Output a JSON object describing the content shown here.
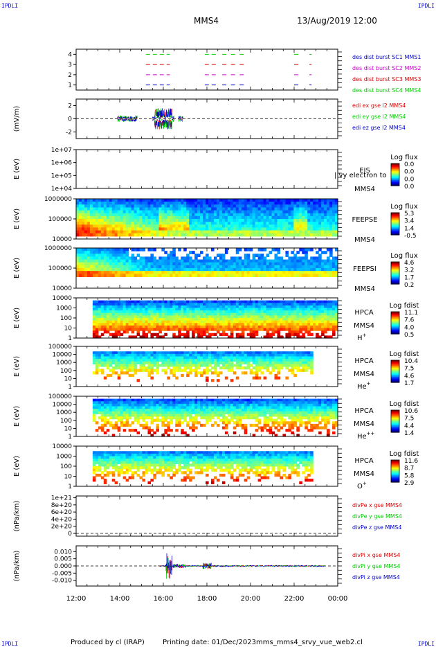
{
  "header": {
    "corner_label": "IPDLI",
    "spacecraft": "MMS4",
    "datetime": "13/Aug/2019 12:00"
  },
  "footer": {
    "produced_by": "Produced by cl (IRAP)",
    "printing_date": "Printing date: 01/Dec/2023",
    "filename": "mms_mms4_srvy_vue_web2.cl"
  },
  "time_axis": {
    "ticks": [
      "12:00",
      "14:00",
      "16:00",
      "18:00",
      "20:00",
      "22:00",
      "00:00"
    ],
    "start_hour": 12,
    "end_hour": 24
  },
  "colors": {
    "red": "#dd0000",
    "green": "#00cc00",
    "blue": "#0000cc",
    "magenta": "#cc00cc"
  },
  "chart_data": [
    {
      "type": "line",
      "id": "burst",
      "ylim": [
        0.5,
        4.5
      ],
      "yticks": [
        "1",
        "2",
        "3",
        "4"
      ],
      "legend": [
        {
          "label": "des dist burst SC1 MMS1",
          "color": "#0000cc"
        },
        {
          "label": "des dist burst SC2 MMS2",
          "color": "#cc00cc"
        },
        {
          "label": "des dist burst SC3 MMS3",
          "color": "#dd0000"
        },
        {
          "label": "des dist burst SC4 MMS4",
          "color": "#00cc00"
        }
      ],
      "intervals_hours": [
        [
          15.2,
          16.3
        ],
        [
          17.9,
          18.5
        ],
        [
          18.7,
          18.9
        ],
        [
          19.1,
          19.3
        ],
        [
          19.5,
          19.7
        ],
        [
          22.0,
          22.2
        ],
        [
          22.7,
          22.8
        ]
      ]
    },
    {
      "type": "line",
      "id": "edi",
      "ylabel": "(mV/m)",
      "ylim": [
        -3,
        3
      ],
      "yticks": [
        "2",
        "0",
        "-2"
      ],
      "legend": [
        {
          "label": "edi ex gse l2 MMS4",
          "color": "#dd0000"
        },
        {
          "label": "edi ey gse l2 MMS4",
          "color": "#00cc00"
        },
        {
          "label": "edi ez gse l2 MMS4",
          "color": "#0000cc"
        }
      ],
      "activity_hours": [
        13.9,
        16.9
      ]
    },
    {
      "type": "heatmap",
      "id": "eis",
      "ylabel": "E (eV)",
      "yticks": [
        "1e+07",
        "1e+06",
        "1e+05",
        "1e+04"
      ],
      "ylim_log": [
        4,
        7
      ],
      "instrument": "EIS",
      "spacecraft": "MMS4",
      "overlay_text": "| vy electron to",
      "colorbar_title": "Log flux",
      "colorbar_ticks": [
        "0.0",
        "0.0",
        "0.0",
        "0.0"
      ],
      "empty": true
    },
    {
      "type": "heatmap",
      "id": "feepse",
      "ylabel": "E (eV)",
      "yticks": [
        "1000000",
        "100000",
        "10000"
      ],
      "ylim_log": [
        4,
        6
      ],
      "instrument": "FEEPSE",
      "spacecraft": "MMS4",
      "colorbar_title": "Log flux",
      "colorbar_ticks": [
        "5.3",
        "3.4",
        "1.4",
        "-0.5"
      ]
    },
    {
      "type": "heatmap",
      "id": "feepsi",
      "ylabel": "E (eV)",
      "yticks": [
        "1000000",
        "100000",
        "10000"
      ],
      "ylim_log": [
        4,
        6
      ],
      "instrument": "FEEPSI",
      "spacecraft": "MMS4",
      "colorbar_title": "Log flux",
      "colorbar_ticks": [
        "4.6",
        "3.2",
        "1.7",
        "0.2"
      ]
    },
    {
      "type": "heatmap",
      "id": "hpca_h",
      "ylabel": "E (eV)",
      "yticks": [
        "10000",
        "1000",
        "100",
        "10",
        "1"
      ],
      "ylim_log": [
        0,
        4.3
      ],
      "instrument": "HPCA",
      "spacecraft": "MMS4",
      "species": "H",
      "charge": "+",
      "colorbar_title": "Log fdist",
      "colorbar_ticks": [
        "11.1",
        "7.6",
        "4.0",
        "0.5"
      ],
      "data_hours": [
        12.8,
        24.0
      ]
    },
    {
      "type": "heatmap",
      "id": "hpca_he1",
      "ylabel": "E (eV)",
      "yticks": [
        "100000",
        "10000",
        "1000",
        "100",
        "10",
        "1"
      ],
      "ylim_log": [
        0,
        5
      ],
      "instrument": "HPCA",
      "spacecraft": "MMS4",
      "species": "He",
      "charge": "+",
      "colorbar_title": "Log fdist",
      "colorbar_ticks": [
        "10.4",
        "7.5",
        "4.6",
        "1.7"
      ],
      "data_hours": [
        12.8,
        22.8
      ]
    },
    {
      "type": "heatmap",
      "id": "hpca_he2",
      "ylabel": "E (eV)",
      "yticks": [
        "100000",
        "10000",
        "1000",
        "100",
        "10",
        "1"
      ],
      "ylim_log": [
        0,
        5
      ],
      "instrument": "HPCA",
      "spacecraft": "MMS4",
      "species": "He",
      "charge": "++",
      "colorbar_title": "Log fdist",
      "colorbar_ticks": [
        "10.6",
        "7.5",
        "4.4",
        "1.4"
      ],
      "data_hours": [
        12.8,
        24.0
      ]
    },
    {
      "type": "heatmap",
      "id": "hpca_o",
      "ylabel": "E (eV)",
      "yticks": [
        "10000",
        "1000",
        "100",
        "10",
        "1"
      ],
      "ylim_log": [
        0,
        4.3
      ],
      "instrument": "HPCA",
      "spacecraft": "MMS4",
      "species": "O",
      "charge": "+",
      "colorbar_title": "Log fdist",
      "colorbar_ticks": [
        "11.6",
        "8.7",
        "5.8",
        "2.9"
      ],
      "data_hours": [
        12.8,
        22.8
      ]
    },
    {
      "type": "line",
      "id": "divpe",
      "ylabel": "(nPa/km)",
      "yticks": [
        "1e+21",
        "8e+20",
        "6e+20",
        "4e+20",
        "2e+20",
        "0"
      ],
      "ylim": [
        0,
        1.05
      ],
      "legend": [
        {
          "label": "divPe x gse MMS4",
          "color": "#dd0000"
        },
        {
          "label": "divPe y gse MMS4",
          "color": "#00cc00"
        },
        {
          "label": "divPe z gse MMS4",
          "color": "#0000cc"
        }
      ]
    },
    {
      "type": "line",
      "id": "divpi",
      "ylabel": "(nPa/km)",
      "yticks": [
        "0.010",
        "0.005",
        "0.000",
        "-0.005",
        "-0.010"
      ],
      "ylim": [
        -0.014,
        0.014
      ],
      "legend": [
        {
          "label": "divPi x gse MMS4",
          "color": "#dd0000"
        },
        {
          "label": "divPi y gse MMS4",
          "color": "#00cc00"
        },
        {
          "label": "divPi z gse MMS4",
          "color": "#0000cc"
        }
      ],
      "activity_hours": [
        15.8,
        23.4
      ]
    }
  ]
}
